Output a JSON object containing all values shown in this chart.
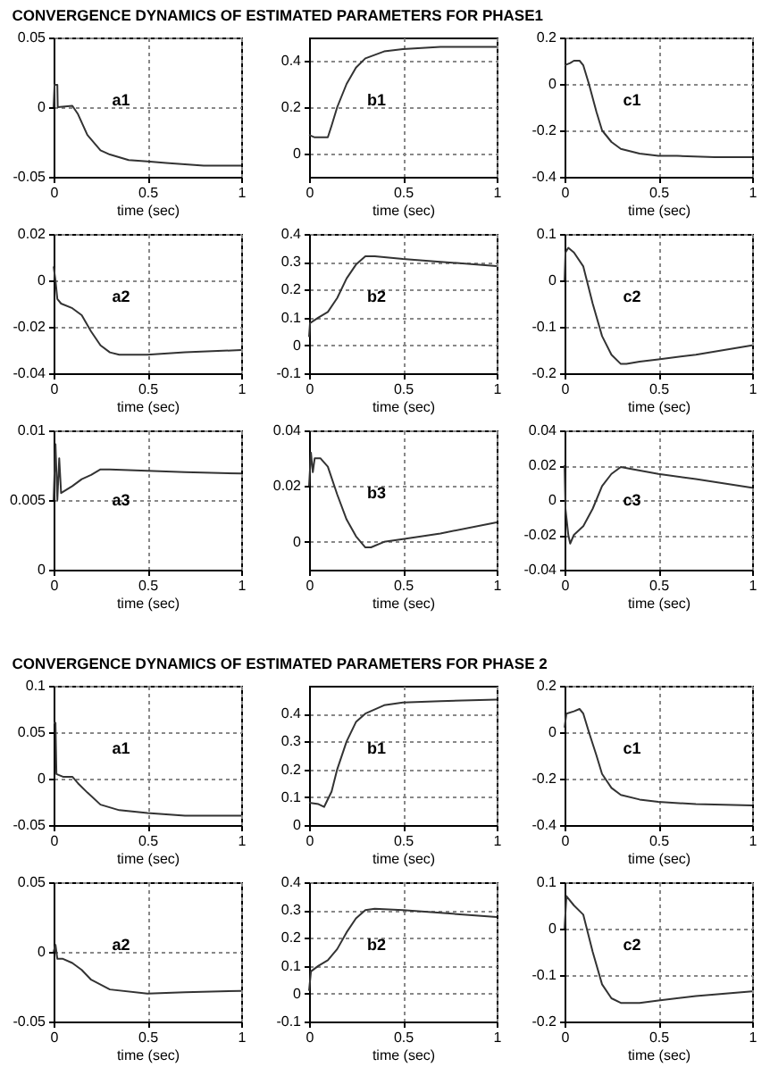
{
  "chart_data": [
    {
      "type": "line",
      "title": "CONVERGENCE DYNAMICS OF ESTIMATED PARAMETERS FOR PHASE1",
      "xlabel": "time (sec)",
      "xlim": [
        0,
        1
      ],
      "xticks": [
        0,
        0.5,
        1
      ],
      "ylim": [
        -0.05,
        0.05
      ],
      "yticks": [
        -0.05,
        0,
        0.05
      ],
      "grid": true,
      "annotations": [
        "a1"
      ],
      "series": [
        {
          "color": "#333333",
          "x": [
            0,
            0.005,
            0.02,
            0.022,
            0.1,
            0.13,
            0.18,
            0.25,
            0.3,
            0.4,
            0.5,
            0.6,
            0.7,
            0.8,
            1
          ],
          "values": [
            0,
            0.016,
            0.016,
            0,
            0.001,
            -0.005,
            -0.02,
            -0.031,
            -0.034,
            -0.038,
            -0.039,
            -0.04,
            -0.041,
            -0.042,
            -0.042
          ]
        }
      ]
    },
    {
      "type": "line",
      "xlabel": "time (sec)",
      "xlim": [
        0,
        1
      ],
      "xticks": [
        0,
        0.5,
        1
      ],
      "ylim": [
        -0.1,
        0.5
      ],
      "yticks": [
        0,
        0.2,
        0.4
      ],
      "grid": true,
      "annotations": [
        "b1"
      ],
      "series": [
        {
          "color": "#333333",
          "x": [
            0,
            0.03,
            0.1,
            0.12,
            0.15,
            0.2,
            0.25,
            0.3,
            0.4,
            0.5,
            0.7,
            1
          ],
          "values": [
            0.08,
            0.07,
            0.07,
            0.12,
            0.2,
            0.3,
            0.37,
            0.41,
            0.44,
            0.45,
            0.46,
            0.46
          ]
        }
      ]
    },
    {
      "type": "line",
      "xlabel": "time (sec)",
      "xlim": [
        0,
        1
      ],
      "xticks": [
        0,
        0.5,
        1
      ],
      "ylim": [
        -0.4,
        0.2
      ],
      "yticks": [
        -0.4,
        -0.2,
        0,
        0.2
      ],
      "grid": true,
      "annotations": [
        "c1"
      ],
      "series": [
        {
          "color": "#333333",
          "x": [
            0,
            0.03,
            0.05,
            0.08,
            0.1,
            0.13,
            0.17,
            0.2,
            0.25,
            0.3,
            0.4,
            0.5,
            0.6,
            0.8,
            1
          ],
          "values": [
            0.08,
            0.09,
            0.1,
            0.1,
            0.08,
            0,
            -0.12,
            -0.2,
            -0.25,
            -0.28,
            -0.3,
            -0.31,
            -0.31,
            -0.315,
            -0.315
          ]
        }
      ]
    },
    {
      "type": "line",
      "xlabel": "time (sec)",
      "xlim": [
        0,
        1
      ],
      "xticks": [
        0,
        0.5,
        1
      ],
      "ylim": [
        -0.04,
        0.02
      ],
      "yticks": [
        -0.04,
        -0.02,
        0,
        0.02
      ],
      "grid": true,
      "annotations": [
        "a2"
      ],
      "series": [
        {
          "color": "#333333",
          "x": [
            0,
            0.01,
            0.02,
            0.04,
            0.1,
            0.15,
            0.2,
            0.25,
            0.3,
            0.35,
            0.5,
            0.7,
            1
          ],
          "values": [
            0.006,
            0,
            -0.008,
            -0.01,
            -0.012,
            -0.015,
            -0.022,
            -0.028,
            -0.031,
            -0.032,
            -0.032,
            -0.031,
            -0.03
          ]
        }
      ]
    },
    {
      "type": "line",
      "xlabel": "time (sec)",
      "xlim": [
        0,
        1
      ],
      "xticks": [
        0,
        0.5,
        1
      ],
      "ylim": [
        -0.1,
        0.4
      ],
      "yticks": [
        -0.1,
        0,
        0.1,
        0.2,
        0.3,
        0.4
      ],
      "grid": true,
      "annotations": [
        "b2"
      ],
      "series": [
        {
          "color": "#333333",
          "x": [
            0,
            0.005,
            0.05,
            0.1,
            0.15,
            0.2,
            0.25,
            0.3,
            0.35,
            0.5,
            0.7,
            1
          ],
          "values": [
            0.03,
            0.08,
            0.1,
            0.12,
            0.17,
            0.24,
            0.29,
            0.32,
            0.32,
            0.31,
            0.3,
            0.285
          ]
        }
      ]
    },
    {
      "type": "line",
      "xlabel": "time (sec)",
      "xlim": [
        0,
        1
      ],
      "xticks": [
        0,
        0.5,
        1
      ],
      "ylim": [
        -0.2,
        0.1
      ],
      "yticks": [
        -0.2,
        -0.1,
        0,
        0.1
      ],
      "grid": true,
      "annotations": [
        "c2"
      ],
      "series": [
        {
          "color": "#333333",
          "x": [
            0,
            0.005,
            0.02,
            0.05,
            0.1,
            0.15,
            0.2,
            0.25,
            0.3,
            0.33,
            0.4,
            0.5,
            0.7,
            1
          ],
          "values": [
            0,
            0.06,
            0.07,
            0.06,
            0.03,
            -0.05,
            -0.12,
            -0.16,
            -0.18,
            -0.18,
            -0.175,
            -0.17,
            -0.16,
            -0.14
          ]
        }
      ]
    },
    {
      "type": "line",
      "xlabel": "time (sec)",
      "xlim": [
        0,
        1
      ],
      "xticks": [
        0,
        0.5,
        1
      ],
      "ylim": [
        0,
        0.01
      ],
      "yticks": [
        0,
        0.005,
        0.01
      ],
      "grid": true,
      "annotations": [
        "a3"
      ],
      "series": [
        {
          "color": "#333333",
          "x": [
            0,
            0.01,
            0.02,
            0.03,
            0.04,
            0.1,
            0.15,
            0.2,
            0.25,
            0.3,
            0.5,
            0.7,
            1
          ],
          "values": [
            0.005,
            0.009,
            0.005,
            0.008,
            0.0055,
            0.006,
            0.0065,
            0.0068,
            0.0072,
            0.0072,
            0.0071,
            0.007,
            0.0069
          ]
        }
      ]
    },
    {
      "type": "line",
      "xlabel": "time (sec)",
      "xlim": [
        0,
        1
      ],
      "xticks": [
        0,
        0.5,
        1
      ],
      "ylim": [
        -0.01,
        0.04
      ],
      "yticks": [
        0,
        0.02,
        0.04
      ],
      "grid": true,
      "annotations": [
        "b3"
      ],
      "series": [
        {
          "color": "#333333",
          "x": [
            0,
            0.01,
            0.02,
            0.03,
            0.06,
            0.1,
            0.15,
            0.2,
            0.25,
            0.3,
            0.33,
            0.4,
            0.5,
            0.7,
            1
          ],
          "values": [
            0.02,
            0.032,
            0.025,
            0.03,
            0.03,
            0.027,
            0.017,
            0.008,
            0.002,
            -0.002,
            -0.002,
            0,
            0.001,
            0.003,
            0.007
          ]
        }
      ]
    },
    {
      "type": "line",
      "xlabel": "time (sec)",
      "xlim": [
        0,
        1
      ],
      "xticks": [
        0,
        0.5,
        1
      ],
      "ylim": [
        -0.04,
        0.04
      ],
      "yticks": [
        -0.04,
        -0.02,
        0,
        0.02,
        0.04
      ],
      "grid": true,
      "annotations": [
        "c3"
      ],
      "series": [
        {
          "color": "#333333",
          "x": [
            0,
            0.005,
            0.02,
            0.03,
            0.05,
            0.1,
            0.15,
            0.2,
            0.25,
            0.3,
            0.35,
            0.5,
            0.7,
            1
          ],
          "values": [
            0.02,
            -0.005,
            -0.02,
            -0.025,
            -0.02,
            -0.015,
            -0.005,
            0.008,
            0.015,
            0.019,
            0.018,
            0.015,
            0.012,
            0.007
          ]
        }
      ]
    },
    {
      "type": "line",
      "title": "CONVERGENCE DYNAMICS OF ESTIMATED PARAMETERS FOR PHASE 2",
      "xlabel": "time (sec)",
      "xlim": [
        0,
        1
      ],
      "xticks": [
        0,
        0.5,
        1
      ],
      "ylim": [
        -0.05,
        0.1
      ],
      "yticks": [
        -0.05,
        0,
        0.05,
        0.1
      ],
      "grid": true,
      "annotations": [
        "a1"
      ],
      "series": [
        {
          "color": "#333333",
          "x": [
            0,
            0.01,
            0.015,
            0.05,
            0.1,
            0.13,
            0.18,
            0.25,
            0.35,
            0.5,
            0.7,
            1
          ],
          "values": [
            0.06,
            0.06,
            0.005,
            0.002,
            0.002,
            -0.005,
            -0.015,
            -0.028,
            -0.034,
            -0.037,
            -0.04,
            -0.04
          ]
        }
      ]
    },
    {
      "type": "line",
      "xlabel": "time (sec)",
      "xlim": [
        0,
        1
      ],
      "xticks": [
        0,
        0.5,
        1
      ],
      "ylim": [
        0,
        0.5
      ],
      "yticks": [
        0,
        0.1,
        0.2,
        0.3,
        0.4
      ],
      "grid": true,
      "annotations": [
        "b1"
      ],
      "series": [
        {
          "color": "#333333",
          "x": [
            0,
            0.05,
            0.08,
            0.12,
            0.15,
            0.2,
            0.25,
            0.3,
            0.4,
            0.5,
            0.7,
            1
          ],
          "values": [
            0.08,
            0.075,
            0.065,
            0.12,
            0.2,
            0.3,
            0.37,
            0.4,
            0.43,
            0.44,
            0.445,
            0.45
          ]
        }
      ]
    },
    {
      "type": "line",
      "xlabel": "time (sec)",
      "xlim": [
        0,
        1
      ],
      "xticks": [
        0,
        0.5,
        1
      ],
      "ylim": [
        -0.4,
        0.2
      ],
      "yticks": [
        -0.4,
        -0.2,
        0,
        0.2
      ],
      "grid": true,
      "annotations": [
        "c1"
      ],
      "series": [
        {
          "color": "#333333",
          "x": [
            0,
            0.01,
            0.05,
            0.08,
            0.1,
            0.13,
            0.17,
            0.2,
            0.25,
            0.3,
            0.4,
            0.5,
            0.7,
            1
          ],
          "values": [
            0.02,
            0.08,
            0.09,
            0.1,
            0.08,
            0,
            -0.1,
            -0.18,
            -0.24,
            -0.27,
            -0.29,
            -0.3,
            -0.31,
            -0.315
          ]
        }
      ]
    },
    {
      "type": "line",
      "xlabel": "time (sec)",
      "xlim": [
        0,
        1
      ],
      "xticks": [
        0,
        0.5,
        1
      ],
      "ylim": [
        -0.05,
        0.05
      ],
      "yticks": [
        -0.05,
        0,
        0.05
      ],
      "grid": true,
      "annotations": [
        "a2"
      ],
      "series": [
        {
          "color": "#333333",
          "x": [
            0,
            0.01,
            0.02,
            0.05,
            0.1,
            0.15,
            0.2,
            0.3,
            0.5,
            0.7,
            1
          ],
          "values": [
            0,
            0.005,
            -0.005,
            -0.005,
            -0.008,
            -0.013,
            -0.02,
            -0.027,
            -0.03,
            -0.029,
            -0.028
          ]
        }
      ]
    },
    {
      "type": "line",
      "xlabel": "time (sec)",
      "xlim": [
        0,
        1
      ],
      "xticks": [
        0,
        0.5,
        1
      ],
      "ylim": [
        -0.1,
        0.4
      ],
      "yticks": [
        -0.1,
        0,
        0.1,
        0.2,
        0.3,
        0.4
      ],
      "grid": true,
      "annotations": [
        "b2"
      ],
      "series": [
        {
          "color": "#333333",
          "x": [
            0,
            0.01,
            0.05,
            0.1,
            0.15,
            0.2,
            0.25,
            0.3,
            0.35,
            0.5,
            0.7,
            1
          ],
          "values": [
            0.01,
            0.08,
            0.1,
            0.12,
            0.16,
            0.22,
            0.27,
            0.3,
            0.305,
            0.3,
            0.29,
            0.275
          ]
        }
      ]
    },
    {
      "type": "line",
      "xlabel": "time (sec)",
      "xlim": [
        0,
        1
      ],
      "xticks": [
        0,
        0.5,
        1
      ],
      "ylim": [
        -0.2,
        0.1
      ],
      "yticks": [
        -0.2,
        -0.1,
        0,
        0.1
      ],
      "grid": true,
      "annotations": [
        "c2"
      ],
      "series": [
        {
          "color": "#333333",
          "x": [
            0,
            0.01,
            0.05,
            0.1,
            0.15,
            0.2,
            0.25,
            0.3,
            0.4,
            0.5,
            0.7,
            1
          ],
          "values": [
            0,
            0.07,
            0.05,
            0.03,
            -0.05,
            -0.12,
            -0.15,
            -0.16,
            -0.16,
            -0.155,
            -0.145,
            -0.135
          ]
        }
      ]
    }
  ]
}
